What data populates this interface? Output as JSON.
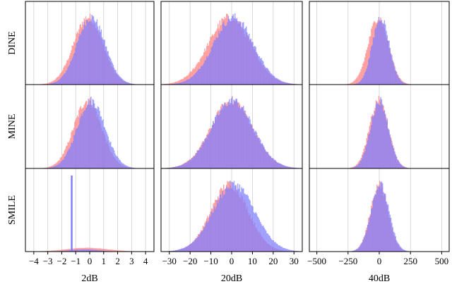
{
  "chart_data": {
    "type": "histogram-grid",
    "rows": [
      "DINE",
      "MINE",
      "SMILE"
    ],
    "columns": [
      {
        "label": "2dB",
        "xlim": [
          -4.6,
          4.6
        ],
        "ticks": [
          -4,
          -3,
          -2,
          -1,
          0,
          1,
          2,
          3,
          4
        ],
        "tick_labels": [
          "−4",
          "−3",
          "−2",
          "−1",
          "0",
          "1",
          "2",
          "3",
          "4"
        ]
      },
      {
        "label": "20dB",
        "xlim": [
          -34,
          34
        ],
        "ticks": [
          -30,
          -20,
          -10,
          0,
          10,
          20,
          30
        ],
        "tick_labels": [
          "−30",
          "−20",
          "−10",
          "0",
          "10",
          "20",
          "30"
        ]
      },
      {
        "label": "40dB",
        "xlim": [
          -560,
          560
        ],
        "ticks": [
          -500,
          -250,
          0,
          250,
          500
        ],
        "tick_labels": [
          "−500",
          "−250",
          "0",
          "250",
          "500"
        ]
      }
    ],
    "grid": true,
    "series_colors": {
      "red": "#ff8080",
      "blue": "#8080ff",
      "overlap": "#9a4ec8"
    },
    "panels": [
      [
        {
          "red": {
            "mean": -0.1,
            "sd": 1.05
          },
          "blue": {
            "mean": 0.1,
            "sd": 1.0
          }
        },
        {
          "red": {
            "mean": -1.0,
            "sd": 10.2
          },
          "blue": {
            "mean": 0.8,
            "sd": 9.6
          }
        },
        {
          "red": {
            "mean": -8.0,
            "sd": 80.0
          },
          "blue": {
            "mean": 12.0,
            "sd": 68.0
          }
        }
      ],
      [
        {
          "red": {
            "mean": -0.15,
            "sd": 1.0
          },
          "blue": {
            "mean": 0.1,
            "sd": 1.0
          }
        },
        {
          "red": {
            "mean": 0.0,
            "sd": 10.0
          },
          "blue": {
            "mean": 0.3,
            "sd": 10.0
          }
        },
        {
          "red": {
            "mean": -3.0,
            "sd": 75.0
          },
          "blue": {
            "mean": 2.0,
            "sd": 72.0
          }
        }
      ],
      [
        {
          "red": {
            "mean": -0.2,
            "sd": 1.5,
            "peak_fraction": 0.05
          },
          "blue": {
            "spike": -1.3,
            "mean": -0.4,
            "sd": 1.0,
            "peak_fraction": 0.03
          }
        },
        {
          "red": {
            "mean": -1.0,
            "sd": 9.0
          },
          "blue": {
            "mean": 1.0,
            "sd": 10.0
          }
        },
        {
          "red": {
            "mean": 0.0,
            "sd": 70.0
          },
          "blue": {
            "mean": 5.0,
            "sd": 72.0
          }
        }
      ]
    ]
  }
}
